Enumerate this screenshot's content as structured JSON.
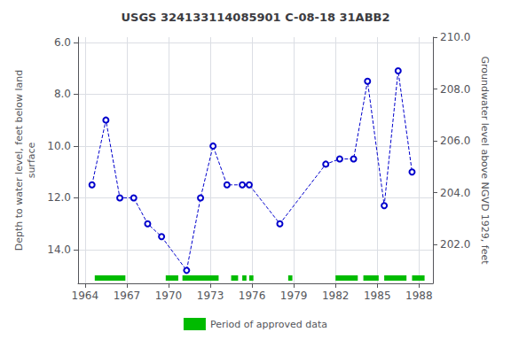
{
  "chart_data": {
    "type": "line",
    "title": "USGS 324133114085901 C-08-18 31ABB2",
    "ylabel": "Depth to water level, feet below land\nsurface",
    "y2label": "Groundwater level above NGVD 1929, feet",
    "x": [
      1964.5,
      1965.5,
      1966.5,
      1967.5,
      1968.5,
      1969.5,
      1971.3,
      1972.3,
      1973.2,
      1974.2,
      1975.3,
      1975.8,
      1978.0,
      1981.3,
      1982.3,
      1983.3,
      1984.3,
      1985.5,
      1986.5,
      1987.5
    ],
    "series": [
      {
        "type": "line",
        "color": "#0000cc",
        "marker": "circle",
        "line_style": "dashed",
        "values": [
          11.5,
          9.0,
          12.0,
          12.0,
          13.0,
          13.5,
          14.8,
          12.0,
          10.0,
          11.5,
          11.5,
          11.5,
          13.0,
          10.7,
          10.5,
          10.5,
          7.5,
          12.3,
          7.1,
          11.0
        ]
      },
      {
        "type": "period",
        "name": "Period of approved data",
        "color": "#00bb00",
        "periods": [
          [
            1964.7,
            1966.9
          ],
          [
            1969.8,
            1970.7
          ],
          [
            1971.0,
            1973.6
          ],
          [
            1974.5,
            1975.0
          ],
          [
            1975.3,
            1975.6
          ],
          [
            1975.8,
            1976.1
          ],
          [
            1978.6,
            1978.9
          ],
          [
            1982.0,
            1983.6
          ],
          [
            1984.0,
            1985.1
          ],
          [
            1985.5,
            1987.1
          ],
          [
            1987.5,
            1988.4
          ]
        ]
      }
    ],
    "xlim": [
      1963.5,
      1989.0
    ],
    "xticks": [
      1964,
      1967,
      1970,
      1973,
      1976,
      1979,
      1982,
      1985,
      1988
    ],
    "ylim": [
      15.3,
      5.8
    ],
    "yticks": [
      {
        "value": 6,
        "label": "6.0"
      },
      {
        "value": 8,
        "label": "8.0"
      },
      {
        "value": 10,
        "label": "10.0"
      },
      {
        "value": 12,
        "label": "12.0"
      },
      {
        "value": 14,
        "label": "14.0"
      }
    ],
    "y2lim": [
      200.5,
      210.0
    ],
    "y2ticks": [
      {
        "value": 202,
        "label": "202.0"
      },
      {
        "value": 204,
        "label": "204.0"
      },
      {
        "value": 206,
        "label": "206.0"
      },
      {
        "value": 208,
        "label": "208.0"
      },
      {
        "value": 210,
        "label": "210.0"
      }
    ],
    "grid": true,
    "legend": "bottom"
  }
}
